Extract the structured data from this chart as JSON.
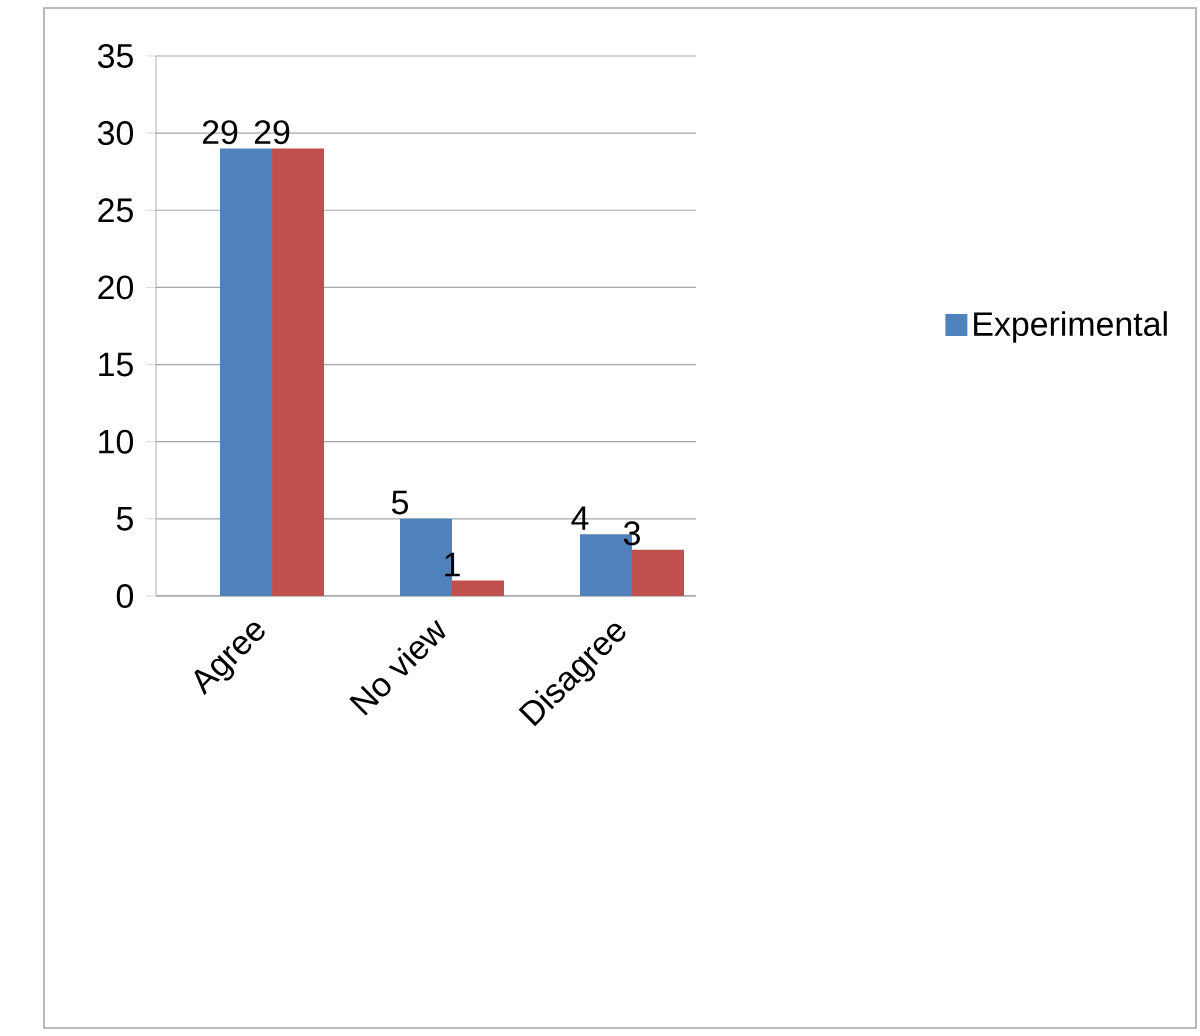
{
  "chart_data": {
    "type": "bar",
    "categories": [
      "Agree",
      "No view",
      "Disagree"
    ],
    "series": [
      {
        "name": "Experimental",
        "color": "#4f81bd",
        "values": [
          29,
          5,
          4
        ]
      },
      {
        "color": "#c0504d",
        "values": [
          29,
          1,
          3
        ]
      }
    ],
    "ylim": [
      0,
      35
    ],
    "yticks": [
      0,
      5,
      10,
      15,
      20,
      25,
      30,
      35
    ],
    "grid": "y",
    "legend": "right",
    "data_labels": true
  }
}
